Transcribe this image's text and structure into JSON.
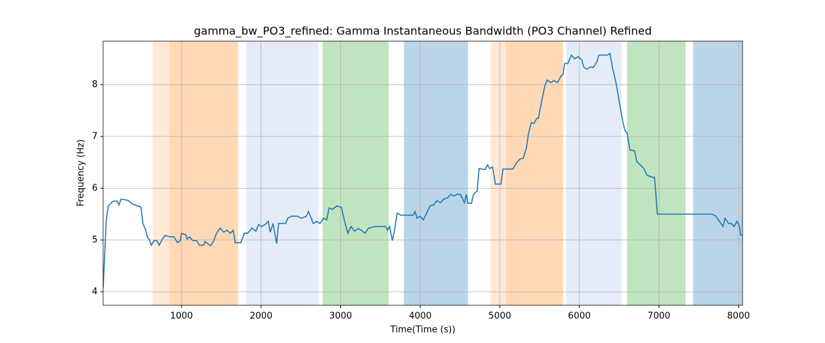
{
  "chart_data": {
    "type": "line",
    "title": "gamma_bw_PO3_refined: Gamma Instantaneous Bandwidth (PO3 Channel) Refined",
    "x_label": "Time(Time (s))",
    "y_label": "Frequency (Hz)",
    "xlim": [
      15,
      8050
    ],
    "ylim": [
      3.74,
      8.84
    ],
    "xticks": [
      1000,
      2000,
      3000,
      4000,
      5000,
      6000,
      7000,
      8000
    ],
    "yticks": [
      4,
      5,
      6,
      7,
      8
    ],
    "grid": true,
    "spans": [
      {
        "start": 637,
        "end": 853,
        "color": "#ffe8d6"
      },
      {
        "start": 853,
        "end": 1710,
        "color": "#ffd9b5"
      },
      {
        "start": 1814,
        "end": 2722,
        "color": "#e5ecf7"
      },
      {
        "start": 2773,
        "end": 3604,
        "color": "#c0e4bf"
      },
      {
        "start": 3795,
        "end": 4600,
        "color": "#bad5e8"
      },
      {
        "start": 4885,
        "end": 5075,
        "color": "#ffe8d6"
      },
      {
        "start": 5075,
        "end": 5794,
        "color": "#ffd9b5"
      },
      {
        "start": 5837,
        "end": 6530,
        "color": "#e5ecf7"
      },
      {
        "start": 6599,
        "end": 7334,
        "color": "#c0e4bf"
      },
      {
        "start": 7430,
        "end": 8050,
        "color": "#bad5e8"
      }
    ],
    "x": [
      15,
      55,
      80,
      140,
      190,
      215,
      240,
      315,
      345,
      375,
      445,
      490,
      515,
      550,
      570,
      600,
      620,
      655,
      690,
      720,
      760,
      795,
      855,
      905,
      950,
      985,
      1000,
      1055,
      1070,
      1105,
      1140,
      1190,
      1225,
      1280,
      1295,
      1330,
      1365,
      1400,
      1440,
      1485,
      1530,
      1570,
      1615,
      1650,
      1675,
      1745,
      1790,
      1830,
      1885,
      1935,
      1970,
      2005,
      2050,
      2090,
      2115,
      2150,
      2195,
      2220,
      2265,
      2310,
      2335,
      2380,
      2455,
      2510,
      2570,
      2595,
      2630,
      2655,
      2700,
      2740,
      2785,
      2825,
      2855,
      2895,
      2955,
      3010,
      3045,
      3090,
      3130,
      3175,
      3220,
      3260,
      3305,
      3350,
      3435,
      3565,
      3590,
      3615,
      3650,
      3675,
      3710,
      3760,
      3910,
      3935,
      3960,
      3995,
      4040,
      4080,
      4125,
      4170,
      4210,
      4255,
      4295,
      4340,
      4380,
      4425,
      4470,
      4510,
      4555,
      4580,
      4600,
      4645,
      4670,
      4715,
      4740,
      4815,
      4845,
      4875,
      4910,
      4945,
      5015,
      5040,
      5165,
      5205,
      5250,
      5295,
      5335,
      5360,
      5395,
      5430,
      5465,
      5485,
      5525,
      5565,
      5595,
      5640,
      5680,
      5725,
      5770,
      5795,
      5815,
      5855,
      5900,
      5940,
      5985,
      6030,
      6055,
      6095,
      6140,
      6175,
      6220,
      6245,
      6315,
      6350,
      6385,
      6420,
      6460,
      6505,
      6550,
      6575,
      6600,
      6635,
      6695,
      6720,
      6765,
      6810,
      6850,
      6920,
      6945,
      6980,
      7280,
      7670,
      7715,
      7760,
      7805,
      7830,
      7875,
      7910,
      7945,
      7980,
      8010,
      8025,
      8050
    ],
    "series": [
      {
        "color": "#1f77b4",
        "values": [
          4.07,
          5.39,
          5.66,
          5.75,
          5.75,
          5.68,
          5.79,
          5.77,
          5.75,
          5.7,
          5.66,
          5.64,
          5.32,
          5.19,
          5.06,
          4.99,
          4.9,
          4.99,
          4.99,
          4.9,
          5.02,
          5.09,
          5.06,
          5.06,
          4.95,
          4.99,
          5.13,
          5.1,
          5.02,
          5.06,
          4.99,
          4.99,
          4.9,
          4.9,
          4.97,
          4.93,
          4.89,
          4.97,
          5.13,
          5.23,
          5.15,
          5.19,
          5.13,
          5.19,
          4.95,
          4.95,
          5.13,
          5.13,
          5.23,
          5.17,
          5.3,
          5.26,
          5.3,
          5.36,
          5.15,
          5.32,
          4.93,
          5.32,
          5.32,
          5.32,
          5.42,
          5.46,
          5.46,
          5.42,
          5.46,
          5.55,
          5.42,
          5.32,
          5.36,
          5.32,
          5.42,
          5.39,
          5.62,
          5.59,
          5.66,
          5.63,
          5.39,
          5.13,
          5.26,
          5.17,
          5.22,
          5.19,
          5.13,
          5.23,
          5.26,
          5.26,
          5.19,
          5.26,
          4.99,
          5.17,
          5.52,
          5.48,
          5.48,
          5.55,
          5.42,
          5.46,
          5.39,
          5.52,
          5.66,
          5.68,
          5.76,
          5.72,
          5.79,
          5.81,
          5.88,
          5.85,
          5.89,
          5.87,
          5.72,
          5.88,
          5.71,
          5.71,
          5.88,
          5.95,
          6.38,
          6.36,
          6.45,
          6.38,
          6.41,
          6.08,
          6.08,
          6.37,
          6.37,
          6.48,
          6.56,
          6.58,
          6.78,
          7.05,
          7.27,
          7.25,
          7.35,
          7.35,
          7.67,
          7.97,
          8.09,
          8.04,
          8.08,
          8.04,
          8.17,
          8.2,
          8.41,
          8.41,
          8.57,
          8.5,
          8.54,
          8.48,
          8.34,
          8.3,
          8.34,
          8.33,
          8.44,
          8.57,
          8.57,
          8.57,
          8.6,
          8.3,
          8.04,
          7.64,
          7.25,
          7.11,
          7.07,
          6.74,
          6.72,
          6.52,
          6.45,
          6.38,
          6.25,
          6.21,
          6.21,
          5.5,
          5.5,
          5.5,
          5.46,
          5.36,
          5.26,
          5.42,
          5.32,
          5.32,
          5.26,
          5.36,
          5.28,
          5.1,
          5.09
        ]
      }
    ]
  }
}
